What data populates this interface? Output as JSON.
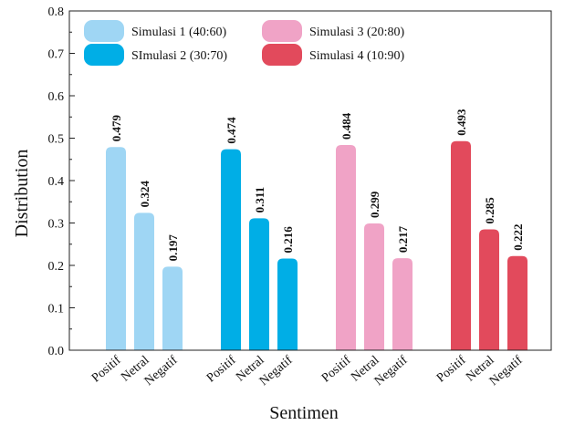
{
  "chart_data": {
    "type": "bar",
    "xlabel": "Sentimen",
    "ylabel": "Distribution",
    "ylim": [
      0,
      0.8
    ],
    "yticks": [
      "0.0",
      "0.1",
      "0.2",
      "0.3",
      "0.4",
      "0.5",
      "0.6",
      "0.7",
      "0.8"
    ],
    "categories": [
      "Positif",
      "Netral",
      "Negatif"
    ],
    "legend_position": "top-left",
    "grid": false,
    "series": [
      {
        "name": "Simulasi 1 (40:60)",
        "color": "#9fd6f4",
        "values": [
          0.479,
          0.324,
          0.197
        ],
        "labels": [
          "0.479",
          "0.324",
          "0.197"
        ]
      },
      {
        "name": "SImulasi 2 (30:70)",
        "color": "#00aee6",
        "values": [
          0.474,
          0.311,
          0.216
        ],
        "labels": [
          "0.474",
          "0.311",
          "0.216"
        ]
      },
      {
        "name": "Simulasi 3 (20:80)",
        "color": "#f0a3c6",
        "values": [
          0.484,
          0.299,
          0.217
        ],
        "labels": [
          "0.484",
          "0.299",
          "0.217"
        ]
      },
      {
        "name": "Simulasi 4 (10:90)",
        "color": "#e24a5c",
        "values": [
          0.493,
          0.285,
          0.222
        ],
        "labels": [
          "0.493",
          "0.285",
          "0.222"
        ]
      }
    ]
  }
}
